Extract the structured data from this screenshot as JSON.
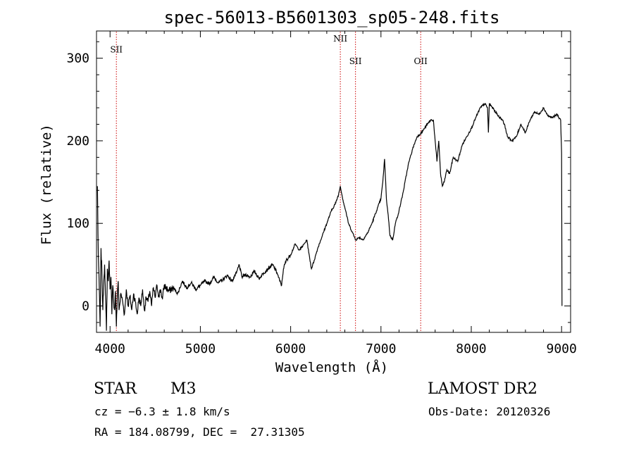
{
  "chart_data": {
    "type": "line",
    "title": "spec-56013-B5601303_sp05-248.fits",
    "xlabel": "Wavelength (Å)",
    "ylabel": "Flux (relative)",
    "xlim": [
      3850,
      9100
    ],
    "ylim": [
      -32,
      333
    ],
    "x_ticks": [
      4000,
      5000,
      6000,
      7000,
      8000,
      9000
    ],
    "y_ticks": [
      0,
      100,
      200,
      300
    ],
    "grid": false,
    "line_color": "#000000",
    "marker_color": "#cc0000",
    "annotations": [
      {
        "label": "SII",
        "x": 4070,
        "y": 307
      },
      {
        "label": "NII",
        "x": 6550,
        "y": 320
      },
      {
        "label": "SII",
        "x": 6718,
        "y": 293
      },
      {
        "label": "OII",
        "x": 7440,
        "y": 293
      }
    ],
    "series": [
      {
        "points": [
          [
            3860,
            145
          ],
          [
            3870,
            60
          ],
          [
            3880,
            25
          ],
          [
            3890,
            -25
          ],
          [
            3900,
            70
          ],
          [
            3910,
            40
          ],
          [
            3920,
            -5
          ],
          [
            3930,
            30
          ],
          [
            3940,
            50
          ],
          [
            3950,
            10
          ],
          [
            3960,
            -30
          ],
          [
            3970,
            45
          ],
          [
            3980,
            30
          ],
          [
            3990,
            55
          ],
          [
            4000,
            20
          ],
          [
            4010,
            35
          ],
          [
            4020,
            -10
          ],
          [
            4030,
            25
          ],
          [
            4040,
            5
          ],
          [
            4050,
            -5
          ],
          [
            4060,
            18
          ],
          [
            4070,
            -25
          ],
          [
            4080,
            10
          ],
          [
            4090,
            30
          ],
          [
            4100,
            -5
          ],
          [
            4120,
            15
          ],
          [
            4140,
            5
          ],
          [
            4160,
            -10
          ],
          [
            4180,
            20
          ],
          [
            4200,
            0
          ],
          [
            4220,
            12
          ],
          [
            4240,
            -5
          ],
          [
            4260,
            15
          ],
          [
            4280,
            5
          ],
          [
            4300,
            -10
          ],
          [
            4320,
            10
          ],
          [
            4340,
            0
          ],
          [
            4360,
            20
          ],
          [
            4380,
            -5
          ],
          [
            4400,
            10
          ],
          [
            4420,
            5
          ],
          [
            4440,
            18
          ],
          [
            4460,
            0
          ],
          [
            4480,
            22
          ],
          [
            4500,
            10
          ],
          [
            4520,
            25
          ],
          [
            4540,
            12
          ],
          [
            4560,
            20
          ],
          [
            4580,
            8
          ],
          [
            4600,
            25
          ],
          [
            4650,
            18
          ],
          [
            4700,
            22
          ],
          [
            4750,
            15
          ],
          [
            4800,
            30
          ],
          [
            4850,
            22
          ],
          [
            4900,
            28
          ],
          [
            4950,
            20
          ],
          [
            5000,
            25
          ],
          [
            5050,
            30
          ],
          [
            5100,
            27
          ],
          [
            5150,
            35
          ],
          [
            5200,
            28
          ],
          [
            5250,
            32
          ],
          [
            5300,
            37
          ],
          [
            5350,
            30
          ],
          [
            5400,
            40
          ],
          [
            5430,
            50
          ],
          [
            5460,
            35
          ],
          [
            5500,
            38
          ],
          [
            5550,
            35
          ],
          [
            5600,
            42
          ],
          [
            5650,
            33
          ],
          [
            5700,
            40
          ],
          [
            5750,
            45
          ],
          [
            5800,
            50
          ],
          [
            5850,
            40
          ],
          [
            5880,
            30
          ],
          [
            5900,
            25
          ],
          [
            5920,
            45
          ],
          [
            5950,
            55
          ],
          [
            6000,
            62
          ],
          [
            6050,
            75
          ],
          [
            6080,
            70
          ],
          [
            6100,
            68
          ],
          [
            6150,
            75
          ],
          [
            6180,
            80
          ],
          [
            6200,
            65
          ],
          [
            6230,
            45
          ],
          [
            6260,
            55
          ],
          [
            6300,
            70
          ],
          [
            6350,
            85
          ],
          [
            6400,
            100
          ],
          [
            6450,
            115
          ],
          [
            6500,
            125
          ],
          [
            6530,
            135
          ],
          [
            6550,
            145
          ],
          [
            6580,
            128
          ],
          [
            6610,
            115
          ],
          [
            6640,
            100
          ],
          [
            6680,
            90
          ],
          [
            6720,
            80
          ],
          [
            6760,
            83
          ],
          [
            6800,
            80
          ],
          [
            6850,
            88
          ],
          [
            6900,
            100
          ],
          [
            6950,
            115
          ],
          [
            7000,
            130
          ],
          [
            7020,
            150
          ],
          [
            7040,
            178
          ],
          [
            7060,
            130
          ],
          [
            7080,
            110
          ],
          [
            7100,
            85
          ],
          [
            7130,
            80
          ],
          [
            7160,
            100
          ],
          [
            7200,
            115
          ],
          [
            7250,
            140
          ],
          [
            7300,
            170
          ],
          [
            7350,
            190
          ],
          [
            7400,
            205
          ],
          [
            7450,
            210
          ],
          [
            7500,
            218
          ],
          [
            7550,
            225
          ],
          [
            7580,
            225
          ],
          [
            7600,
            200
          ],
          [
            7620,
            175
          ],
          [
            7640,
            200
          ],
          [
            7660,
            160
          ],
          [
            7680,
            145
          ],
          [
            7700,
            150
          ],
          [
            7730,
            165
          ],
          [
            7760,
            160
          ],
          [
            7800,
            180
          ],
          [
            7850,
            175
          ],
          [
            7900,
            195
          ],
          [
            7950,
            205
          ],
          [
            8000,
            215
          ],
          [
            8050,
            228
          ],
          [
            8100,
            240
          ],
          [
            8150,
            245
          ],
          [
            8180,
            240
          ],
          [
            8190,
            210
          ],
          [
            8200,
            245
          ],
          [
            8250,
            238
          ],
          [
            8300,
            230
          ],
          [
            8350,
            225
          ],
          [
            8380,
            215
          ],
          [
            8400,
            205
          ],
          [
            8450,
            200
          ],
          [
            8500,
            205
          ],
          [
            8550,
            220
          ],
          [
            8600,
            210
          ],
          [
            8650,
            225
          ],
          [
            8700,
            235
          ],
          [
            8750,
            232
          ],
          [
            8800,
            240
          ],
          [
            8850,
            230
          ],
          [
            8900,
            228
          ],
          [
            8950,
            232
          ],
          [
            8990,
            225
          ],
          [
            9000,
            185
          ],
          [
            9005,
            0
          ]
        ]
      }
    ]
  },
  "info": {
    "object_class": "STAR",
    "subclass": "M3",
    "survey": "LAMOST DR2",
    "redshift": "cz = −6.3 ± 1.8 km/s",
    "obs_date": "Obs-Date: 20120326",
    "coordinates": "RA = 184.08799, DEC =  27.31305"
  }
}
